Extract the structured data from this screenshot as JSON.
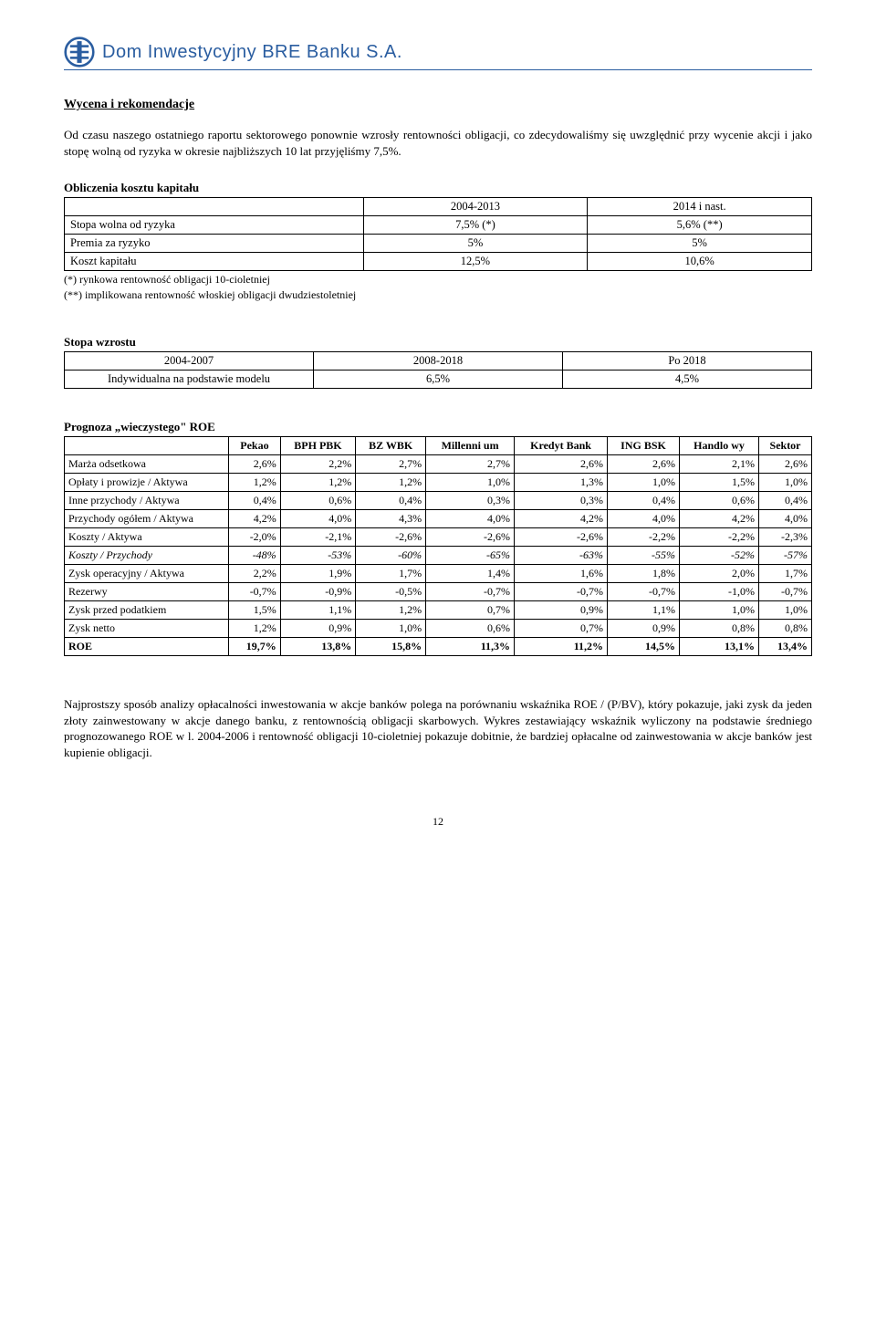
{
  "header": {
    "company": "Dom Inwestycyjny BRE Banku S.A."
  },
  "section1": {
    "title": "Wycena i rekomendacje",
    "paragraph": "Od czasu naszego ostatniego raportu sektorowego ponownie wzrosły rentowności obligacji, co zdecydowaliśmy się uwzględnić przy wycenie akcji i jako stopę wolną od ryzyka w okresie najbliższych 10 lat przyjęliśmy 7,5%."
  },
  "koszt": {
    "title": "Obliczenia kosztu kapitału",
    "col1": "2004-2013",
    "col2": "2014 i nast.",
    "rows": [
      {
        "label": "Stopa wolna od ryzyka",
        "c1": "7,5% (*)",
        "c2": "5,6% (**)"
      },
      {
        "label": "Premia za ryzyko",
        "c1": "5%",
        "c2": "5%"
      },
      {
        "label": "Koszt kapitału",
        "c1": "12,5%",
        "c2": "10,6%"
      }
    ],
    "foot1": "(*) rynkowa rentowność obligacji 10-cioletniej",
    "foot2": "(**) implikowana rentowność włoskiej obligacji dwudziestoletniej"
  },
  "wzrost": {
    "title": "Stopa wzrostu",
    "h1": "2004-2007",
    "h2": "2008-2018",
    "h3": "Po 2018",
    "r1": "Indywidualna na podstawie modelu",
    "r2": "6,5%",
    "r3": "4,5%"
  },
  "roe": {
    "title": "Prognoza „wieczystego\" ROE",
    "cols": [
      "",
      "Pekao",
      "BPH PBK",
      "BZ WBK",
      "Millenni um",
      "Kredyt Bank",
      "ING BSK",
      "Handlo wy",
      "Sektor"
    ],
    "rows": [
      [
        "Marża odsetkowa",
        "2,6%",
        "2,2%",
        "2,7%",
        "2,7%",
        "2,6%",
        "2,6%",
        "2,1%",
        "2,6%"
      ],
      [
        "Opłaty i prowizje / Aktywa",
        "1,2%",
        "1,2%",
        "1,2%",
        "1,0%",
        "1,3%",
        "1,0%",
        "1,5%",
        "1,0%"
      ],
      [
        "Inne przychody / Aktywa",
        "0,4%",
        "0,6%",
        "0,4%",
        "0,3%",
        "0,3%",
        "0,4%",
        "0,6%",
        "0,4%"
      ],
      [
        "Przychody ogółem / Aktywa",
        "4,2%",
        "4,0%",
        "4,3%",
        "4,0%",
        "4,2%",
        "4,0%",
        "4,2%",
        "4,0%"
      ],
      [
        "Koszty / Aktywa",
        "-2,0%",
        "-2,1%",
        "-2,6%",
        "-2,6%",
        "-2,6%",
        "-2,2%",
        "-2,2%",
        "-2,3%"
      ],
      [
        "Koszty / Przychody",
        "-48%",
        "-53%",
        "-60%",
        "-65%",
        "-63%",
        "-55%",
        "-52%",
        "-57%"
      ],
      [
        "Zysk operacyjny / Aktywa",
        "2,2%",
        "1,9%",
        "1,7%",
        "1,4%",
        "1,6%",
        "1,8%",
        "2,0%",
        "1,7%"
      ],
      [
        "Rezerwy",
        "-0,7%",
        "-0,9%",
        "-0,5%",
        "-0,7%",
        "-0,7%",
        "-0,7%",
        "-1,0%",
        "-0,7%"
      ],
      [
        "Zysk przed podatkiem",
        "1,5%",
        "1,1%",
        "1,2%",
        "0,7%",
        "0,9%",
        "1,1%",
        "1,0%",
        "1,0%"
      ],
      [
        "Zysk netto",
        "1,2%",
        "0,9%",
        "1,0%",
        "0,6%",
        "0,7%",
        "0,9%",
        "0,8%",
        "0,8%"
      ],
      [
        "ROE",
        "19,7%",
        "13,8%",
        "15,8%",
        "11,3%",
        "11,2%",
        "14,5%",
        "13,1%",
        "13,4%"
      ]
    ],
    "italic_row_index": 5,
    "bold_row_index": 10
  },
  "closing": {
    "paragraph": "Najprostszy sposób analizy opłacalności inwestowania w akcje banków polega na porównaniu wskaźnika ROE / (P/BV), który pokazuje, jaki zysk da jeden złoty zainwestowany w akcje danego banku, z rentownością obligacji skarbowych. Wykres zestawiający wskaźnik wyliczony na podstawie średniego prognozowanego ROE w l. 2004-2006 i rentowność obligacji 10-cioletniej pokazuje dobitnie, że bardziej opłacalne od zainwestowania w akcje banków jest kupienie obligacji."
  },
  "page": "12"
}
